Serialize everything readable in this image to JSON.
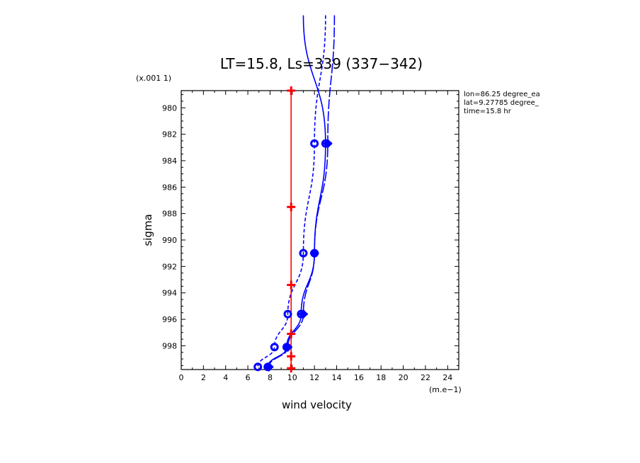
{
  "chart_data": {
    "type": "line",
    "title": "LT=15.8, Ls=339 (337−342)",
    "xlabel": "wind velocity",
    "x_unit": "(m.e−1)",
    "ylabel": "sigma",
    "y_scale": "(x.001 1)",
    "xlim": [
      0,
      25
    ],
    "ylim": [
      999.8,
      978.7
    ],
    "x_ticks": [
      "0",
      "2",
      "4",
      "6",
      "8",
      "10",
      "12",
      "14",
      "16",
      "18",
      "20",
      "22",
      "24"
    ],
    "y_ticks": [
      "980",
      "982",
      "984",
      "986",
      "988",
      "990",
      "992",
      "994",
      "996",
      "998"
    ],
    "x_tick_values": [
      0,
      2,
      4,
      6,
      8,
      10,
      12,
      14,
      16,
      18,
      20,
      22,
      24
    ],
    "y_tick_values": [
      980,
      982,
      984,
      986,
      988,
      990,
      992,
      994,
      996,
      998
    ],
    "annotations": [
      "lon=86.25 degree_ea",
      "lat=9.27785 degree_",
      "time=15.8 hr"
    ],
    "series": [
      {
        "color": "#0000ff",
        "dash": "solid",
        "marker": "circle",
        "points": [
          [
            11.0,
            973.0
          ],
          [
            13.0,
            982.7
          ],
          [
            12.0,
            991.0
          ],
          [
            10.8,
            995.6
          ],
          [
            9.5,
            998.1
          ],
          [
            7.8,
            999.6
          ]
        ]
      },
      {
        "color": "#0000ff",
        "dash": "long-dash",
        "marker": "diamond",
        "points": [
          [
            13.8,
            973.0
          ],
          [
            13.2,
            982.7
          ],
          [
            12.0,
            991.0
          ],
          [
            11.0,
            995.6
          ],
          [
            9.6,
            998.1
          ],
          [
            7.9,
            999.6
          ]
        ]
      },
      {
        "color": "#0000ff",
        "dash": "short-dash",
        "marker": "circle",
        "points": [
          [
            13.0,
            973.0
          ],
          [
            12.0,
            982.7
          ],
          [
            11.0,
            991.0
          ],
          [
            9.6,
            995.6
          ],
          [
            8.4,
            998.1
          ],
          [
            6.9,
            999.6
          ]
        ]
      },
      {
        "color": "#ff0000",
        "dash": "solid",
        "marker": "plus",
        "points": [
          [
            9.9,
            978.7
          ],
          [
            9.9,
            987.5
          ],
          [
            9.9,
            993.4
          ],
          [
            9.9,
            997.1
          ],
          [
            9.9,
            998.8
          ],
          [
            9.9,
            999.7
          ]
        ]
      }
    ]
  }
}
